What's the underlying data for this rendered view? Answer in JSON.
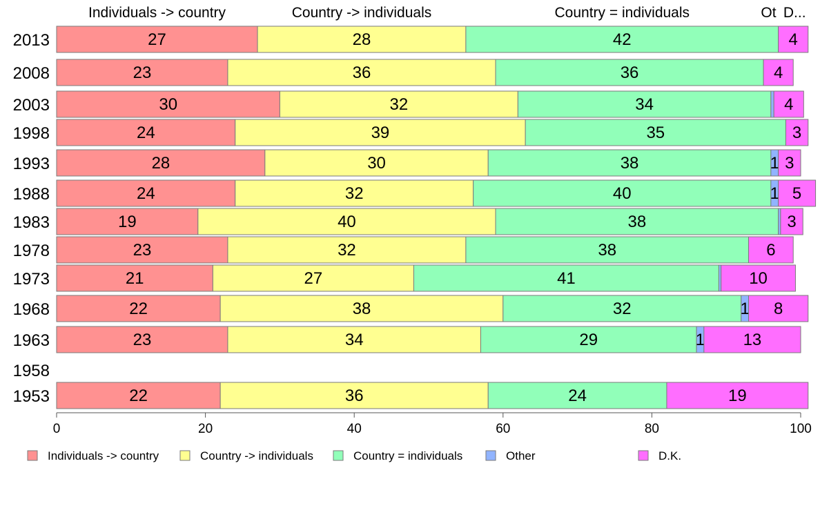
{
  "chart_data": {
    "type": "bar",
    "orientation": "horizontal",
    "stacked": true,
    "categories": [
      "2013",
      "2008",
      "2003",
      "1998",
      "1993",
      "1988",
      "1983",
      "1978",
      "1973",
      "1968",
      "1963",
      "1958",
      "1953"
    ],
    "series": [
      {
        "name": "Individuals -> country",
        "header": "Individuals -> country",
        "color": "#FF9191",
        "values": [
          27,
          23,
          30,
          24,
          28,
          24,
          19,
          23,
          21,
          22,
          23,
          null,
          22
        ],
        "labels": [
          "27",
          "23",
          "30",
          "24",
          "28",
          "24",
          "19",
          "23",
          "21",
          "22",
          "23",
          "",
          "22"
        ]
      },
      {
        "name": "Country -> individuals",
        "header": "Country -> individuals",
        "color": "#FFFF91",
        "values": [
          28,
          36,
          32,
          39,
          30,
          32,
          40,
          32,
          27,
          38,
          34,
          null,
          36
        ],
        "labels": [
          "28",
          "36",
          "32",
          "39",
          "30",
          "32",
          "40",
          "32",
          "27",
          "38",
          "34",
          "",
          "36"
        ]
      },
      {
        "name": "Country = individuals",
        "header": "Country = individuals",
        "color": "#91FFB9",
        "values": [
          42,
          36,
          34,
          35,
          38,
          40,
          38,
          38,
          41,
          32,
          29,
          null,
          24
        ],
        "labels": [
          "42",
          "36",
          "34",
          "35",
          "38",
          "40",
          "38",
          "38",
          "41",
          "32",
          "29",
          "",
          "24"
        ]
      },
      {
        "name": "Other",
        "header": "Ot",
        "color": "#91B4FF",
        "values": [
          0,
          0,
          0.4,
          0,
          1,
          1,
          0.3,
          0,
          0.3,
          1,
          1,
          null,
          0
        ],
        "labels": [
          "",
          "",
          "",
          "",
          "1",
          "1",
          "",
          "",
          "",
          "1",
          "1",
          "",
          ""
        ]
      },
      {
        "name": "D.K.",
        "header": "D...",
        "color": "#FF6EFF",
        "values": [
          4,
          4,
          4,
          3,
          3,
          5,
          3,
          6,
          10,
          8,
          13,
          null,
          19
        ],
        "labels": [
          "4",
          "4",
          "4",
          "3",
          "3",
          "5",
          "3",
          "6",
          "10",
          "8",
          "13",
          "",
          "19"
        ]
      }
    ],
    "xlim": [
      0,
      100
    ],
    "xticks": [
      "0",
      "20",
      "40",
      "60",
      "80",
      "100"
    ],
    "legend_position": "bottom",
    "grid": false,
    "title": "",
    "xlabel": "",
    "ylabel": ""
  }
}
